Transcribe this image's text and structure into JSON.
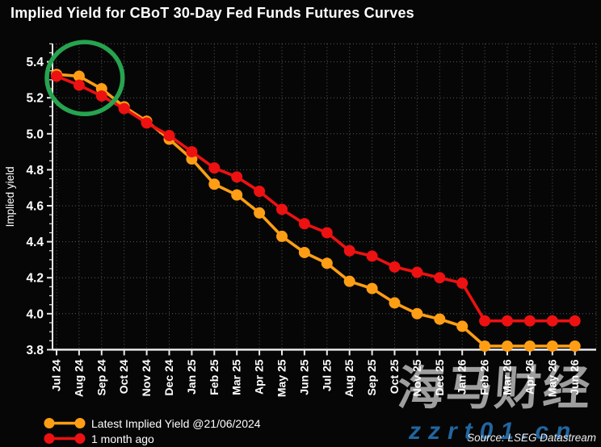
{
  "title": "Implied Yield for CBoT 30-Day Fed Funds Futures Curves",
  "source": "Source: LSEG Datastream",
  "watermark": {
    "cjk": "海马财经",
    "url": "zzrt01.cn"
  },
  "legend": [
    {
      "label": "Latest Implied Yield @21/06/2024",
      "color": "#ff9e15"
    },
    {
      "label": "1 month ago",
      "color": "#ed1111"
    }
  ],
  "colors": {
    "background": "#060606",
    "axis": "#e8e8e8",
    "grid": "#5a5a5a",
    "tick_text": "#ffffff",
    "annotation_green": "#26a44f"
  },
  "chart_data": {
    "type": "line",
    "title": "Implied Yield for CBoT 30-Day Fed Funds Futures Curves",
    "xlabel": "",
    "ylabel": "Implied yield",
    "ylim": [
      3.8,
      5.5
    ],
    "yticks": [
      3.8,
      4.0,
      4.2,
      4.4,
      4.6,
      4.8,
      5.0,
      5.2,
      5.4
    ],
    "ytick_minor_step": 0.05,
    "grid": "dotted",
    "legend_position": "bottom-left",
    "categories": [
      "Jul 24",
      "Aug 24",
      "Sep 24",
      "Oct 24",
      "Nov 24",
      "Dec 24",
      "Jan 25",
      "Feb 25",
      "Mar 25",
      "Apr 25",
      "May 25",
      "Jun 25",
      "Jul 25",
      "Aug 25",
      "Sep 25",
      "Oct 25",
      "Nov 25",
      "Dec 25",
      "Jan 26",
      "Feb 26",
      "Mar 26",
      "Apr 26",
      "May 26",
      "Jun 26"
    ],
    "series": [
      {
        "name": "Latest Implied Yield @21/06/2024",
        "color": "#ff9e15",
        "values": [
          5.33,
          5.32,
          5.25,
          5.15,
          5.07,
          4.97,
          4.86,
          4.72,
          4.66,
          4.56,
          4.43,
          4.34,
          4.28,
          4.18,
          4.14,
          4.06,
          4.0,
          3.97,
          3.93,
          3.82,
          3.82,
          3.82,
          3.82,
          3.82
        ]
      },
      {
        "name": "1 month ago",
        "color": "#ed1111",
        "values": [
          5.32,
          5.27,
          5.21,
          5.14,
          5.06,
          4.99,
          4.9,
          4.81,
          4.76,
          4.68,
          4.58,
          4.5,
          4.45,
          4.35,
          4.32,
          4.26,
          4.23,
          4.2,
          4.17,
          3.96,
          3.96,
          3.96,
          3.96,
          3.96
        ]
      }
    ],
    "annotation": {
      "shape": "ellipse",
      "cx_index": 1.25,
      "cy_value": 5.31,
      "rx_index": 1.68,
      "ry_value": 0.2,
      "color": "#26a44f",
      "meaning": "highlight of first three months of curves"
    }
  }
}
